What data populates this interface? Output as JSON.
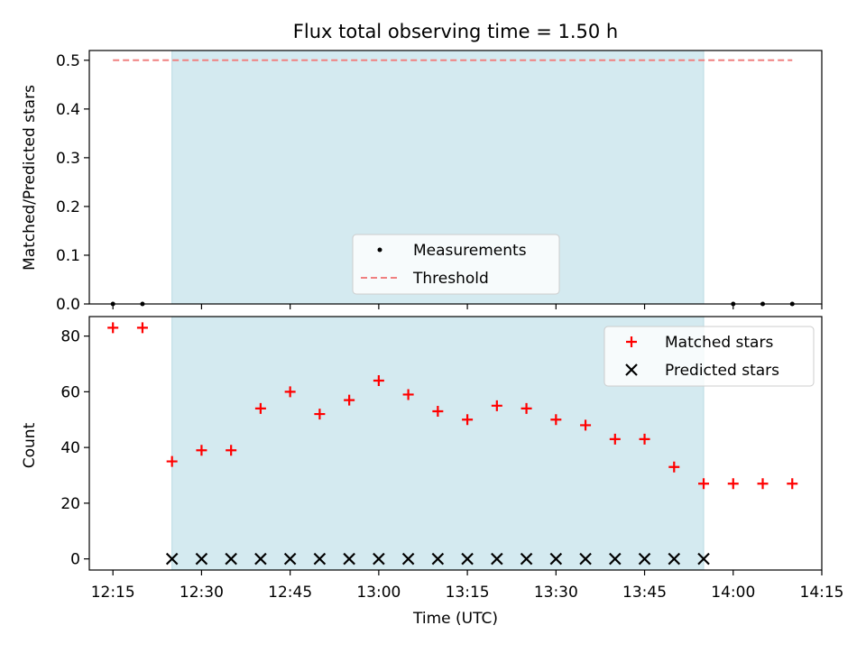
{
  "chart_data": [
    {
      "type": "scatter",
      "panel": "top",
      "title": "Flux total observing time = 1.50 h",
      "xlabel": "",
      "ylabel": "Matched/Predicted stars",
      "xlim": [
        "12:11",
        "14:15"
      ],
      "ylim": [
        0,
        0.52
      ],
      "y_ticks": [
        "0.0",
        "0.1",
        "0.2",
        "0.3",
        "0.4",
        "0.5"
      ],
      "y_tick_values": [
        0,
        0.1,
        0.2,
        0.3,
        0.4,
        0.5
      ],
      "shaded_interval": [
        "12:25",
        "13:55"
      ],
      "shade_color": "#d4eaf0",
      "series": [
        {
          "name": "Measurements",
          "marker": "dot",
          "color": "#000000",
          "x": [
            "12:15",
            "12:20",
            "14:00",
            "14:05",
            "14:10"
          ],
          "values": [
            0,
            0,
            0,
            0,
            0
          ]
        },
        {
          "name": "Threshold",
          "marker": "dashed-line",
          "color": "#f08080",
          "x": [
            "12:15",
            "14:10"
          ],
          "values": [
            0.5,
            0.5
          ]
        }
      ],
      "legend": {
        "position": "lower-center",
        "entries": [
          "Measurements",
          "Threshold"
        ]
      },
      "grid": false
    },
    {
      "type": "scatter",
      "panel": "bottom",
      "xlabel": "Time (UTC)",
      "ylabel": "Count",
      "xlim": [
        "12:11",
        "14:15"
      ],
      "ylim": [
        -4,
        87
      ],
      "x_ticks": [
        "12:15",
        "12:30",
        "12:45",
        "13:00",
        "13:15",
        "13:30",
        "13:45",
        "14:00",
        "14:15"
      ],
      "y_ticks": [
        "0",
        "20",
        "40",
        "60",
        "80"
      ],
      "y_tick_values": [
        0,
        20,
        40,
        60,
        80
      ],
      "shaded_interval": [
        "12:25",
        "13:55"
      ],
      "shade_color": "#d4eaf0",
      "series": [
        {
          "name": "Matched stars",
          "marker": "plus",
          "color": "#ff0000",
          "x": [
            "12:15",
            "12:20",
            "12:25",
            "12:30",
            "12:35",
            "12:40",
            "12:45",
            "12:50",
            "12:55",
            "13:00",
            "13:05",
            "13:10",
            "13:15",
            "13:20",
            "13:25",
            "13:30",
            "13:35",
            "13:40",
            "13:45",
            "13:50",
            "13:55",
            "14:00",
            "14:05",
            "14:10"
          ],
          "values": [
            83,
            83,
            35,
            39,
            39,
            54,
            60,
            52,
            57,
            64,
            59,
            53,
            50,
            55,
            54,
            50,
            48,
            43,
            43,
            33,
            27,
            27,
            27,
            27
          ]
        },
        {
          "name": "Predicted stars",
          "marker": "x",
          "color": "#000000",
          "x": [
            "12:25",
            "12:30",
            "12:35",
            "12:40",
            "12:45",
            "12:50",
            "12:55",
            "13:00",
            "13:05",
            "13:10",
            "13:15",
            "13:20",
            "13:25",
            "13:30",
            "13:35",
            "13:40",
            "13:45",
            "13:50",
            "13:55"
          ],
          "values": [
            0,
            0,
            0,
            0,
            0,
            0,
            0,
            0,
            0,
            0,
            0,
            0,
            0,
            0,
            0,
            0,
            0,
            0,
            0
          ]
        }
      ],
      "legend": {
        "position": "upper-right",
        "entries": [
          "Matched stars",
          "Predicted stars"
        ]
      },
      "grid": false
    }
  ]
}
